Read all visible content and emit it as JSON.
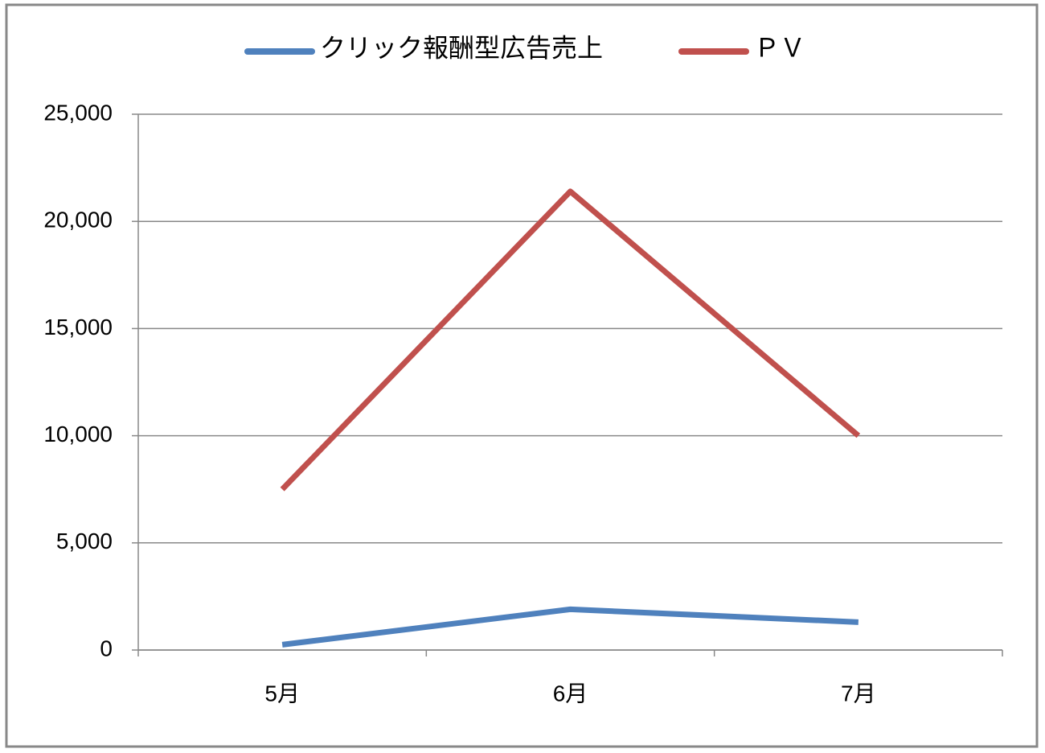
{
  "chart_data": {
    "type": "line",
    "categories": [
      "5月",
      "6月",
      "7月"
    ],
    "series": [
      {
        "name": "クリック報酬型広告売上",
        "color": "#4f81bd",
        "values": [
          250,
          1900,
          1300
        ]
      },
      {
        "name": "ＰＶ",
        "color": "#c0504d",
        "values": [
          7500,
          21400,
          10000
        ]
      }
    ],
    "ylim": [
      0,
      25000
    ],
    "yticks": [
      0,
      {
        "value": 5000,
        "label": "5,000"
      },
      {
        "value": 10000,
        "label": "10,000"
      },
      {
        "value": 15000,
        "label": "15,000"
      },
      {
        "value": 20000,
        "label": "20,000"
      },
      {
        "value": 25000,
        "label": "25,000"
      }
    ],
    "grid": true,
    "legend": "top"
  }
}
